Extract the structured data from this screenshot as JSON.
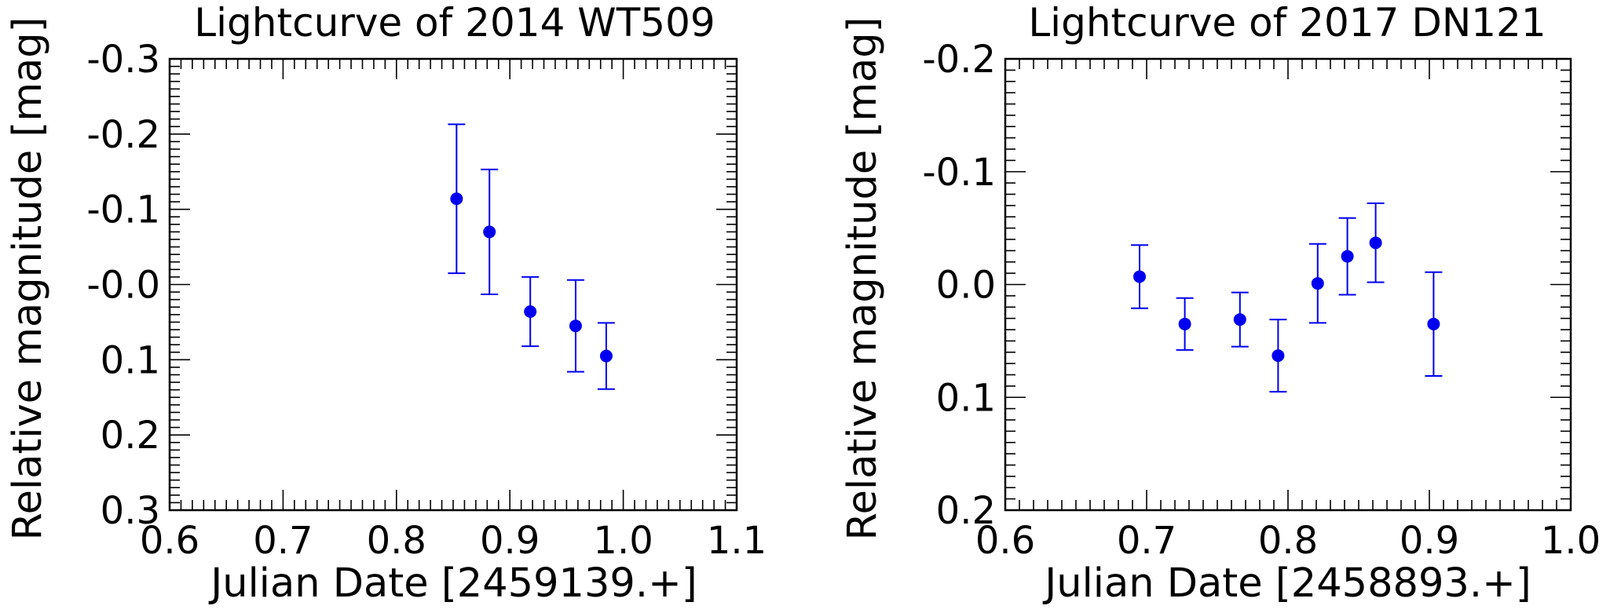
{
  "chart_data": [
    {
      "type": "scatter",
      "title": "Lightcurve of 2014 WT509",
      "xlabel": "Julian Date [2459139.+]",
      "ylabel": "Relative magnitude [mag]",
      "xlim": [
        0.6,
        1.1
      ],
      "ylim": [
        0.3,
        -0.3
      ],
      "y_inverted": true,
      "x_ticks": [
        "0.6",
        "0.7",
        "0.8",
        "0.9",
        "1.0",
        "1.1"
      ],
      "y_ticks": [
        "-0.3",
        "-0.2",
        "-0.1",
        "-0.0",
        "0.1",
        "0.2",
        "0.3"
      ],
      "color": "#0000ee",
      "points": [
        {
          "x": 0.853,
          "y": -0.114,
          "err": 0.099
        },
        {
          "x": 0.882,
          "y": -0.07,
          "err": 0.083
        },
        {
          "x": 0.918,
          "y": 0.036,
          "err": 0.046
        },
        {
          "x": 0.958,
          "y": 0.055,
          "err": 0.061
        },
        {
          "x": 0.985,
          "y": 0.095,
          "err": 0.044
        }
      ]
    },
    {
      "type": "scatter",
      "title": "Lightcurve of 2017 DN121",
      "xlabel": "Julian Date [2458893.+]",
      "ylabel": "Relative magnitude [mag]",
      "xlim": [
        0.6,
        1.0
      ],
      "ylim": [
        0.2,
        -0.2
      ],
      "y_inverted": true,
      "x_ticks": [
        "0.6",
        "0.7",
        "0.8",
        "0.9",
        "1.0"
      ],
      "y_ticks": [
        "-0.2",
        "-0.1",
        "0.0",
        "0.1",
        "0.2"
      ],
      "color": "#0000ee",
      "points": [
        {
          "x": 0.695,
          "y": -0.007,
          "err": 0.028
        },
        {
          "x": 0.727,
          "y": 0.035,
          "err": 0.023
        },
        {
          "x": 0.766,
          "y": 0.031,
          "err": 0.024
        },
        {
          "x": 0.793,
          "y": 0.063,
          "err": 0.032
        },
        {
          "x": 0.821,
          "y": -0.001,
          "err": 0.035
        },
        {
          "x": 0.842,
          "y": -0.025,
          "err": 0.034
        },
        {
          "x": 0.862,
          "y": -0.037,
          "err": 0.035
        },
        {
          "x": 0.903,
          "y": 0.035,
          "err": 0.046
        }
      ]
    }
  ]
}
